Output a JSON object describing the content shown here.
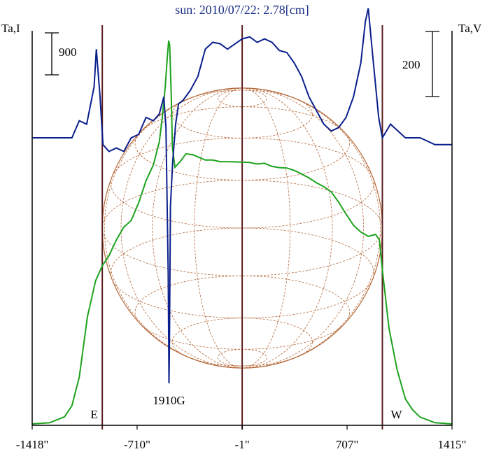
{
  "chart_data": {
    "type": "line",
    "title": "sun: 2010/07/22: 2.78[cm]",
    "left_axis_label": "Ta,I",
    "right_axis_label": "Ta,V",
    "left_scale_bar": {
      "label": "900",
      "value": 900
    },
    "right_scale_bar": {
      "label": "200",
      "value": 200
    },
    "x_unit": "arcsec",
    "xlim": [
      -1418,
      1415
    ],
    "x_ticks": [
      {
        "value": -1418,
        "label": "-1418\""
      },
      {
        "value": -710,
        "label": "-710\""
      },
      {
        "value": -1,
        "label": "-1\""
      },
      {
        "value": 707,
        "label": "707\""
      },
      {
        "value": 1415,
        "label": "1415\""
      }
    ],
    "vertical_markers": [
      -945,
      -1,
      945
    ],
    "solar_disk": {
      "center_x": 0,
      "radius": 945
    },
    "annotations": [
      {
        "text": "1910G",
        "x": -495
      },
      {
        "text": "E",
        "x": -1000
      },
      {
        "text": "W",
        "x": 1040
      }
    ],
    "series": [
      {
        "values": [
          [
            -1418,
            0
          ],
          [
            -1300,
            30
          ],
          [
            -1200,
            180
          ],
          [
            -1150,
            460
          ],
          [
            -1100,
            1180
          ],
          [
            -1045,
            2700
          ],
          [
            -990,
            3600
          ],
          [
            -945,
            3980
          ],
          [
            -900,
            4230
          ],
          [
            -850,
            4630
          ],
          [
            -800,
            4950
          ],
          [
            -750,
            5120
          ],
          [
            -700,
            5560
          ],
          [
            -650,
            6120
          ],
          [
            -600,
            6520
          ],
          [
            -560,
            7100
          ],
          [
            -540,
            7720
          ],
          [
            -520,
            8500
          ],
          [
            -505,
            9300
          ],
          [
            -497,
            9650
          ],
          [
            -490,
            9530
          ],
          [
            -480,
            8300
          ],
          [
            -472,
            6960
          ],
          [
            -455,
            6460
          ],
          [
            -420,
            6600
          ],
          [
            -380,
            6800
          ],
          [
            -330,
            6770
          ],
          [
            -300,
            6720
          ],
          [
            -250,
            6640
          ],
          [
            -200,
            6640
          ],
          [
            -150,
            6600
          ],
          [
            -100,
            6600
          ],
          [
            -1,
            6590
          ],
          [
            50,
            6580
          ],
          [
            100,
            6540
          ],
          [
            150,
            6560
          ],
          [
            200,
            6480
          ],
          [
            250,
            6450
          ],
          [
            300,
            6440
          ],
          [
            350,
            6380
          ],
          [
            400,
            6290
          ],
          [
            450,
            6190
          ],
          [
            500,
            6070
          ],
          [
            550,
            5970
          ],
          [
            600,
            5840
          ],
          [
            650,
            5580
          ],
          [
            700,
            5280
          ],
          [
            750,
            5000
          ],
          [
            800,
            4830
          ],
          [
            850,
            4720
          ],
          [
            900,
            4770
          ],
          [
            925,
            4630
          ],
          [
            945,
            3870
          ],
          [
            990,
            2400
          ],
          [
            1045,
            1360
          ],
          [
            1100,
            630
          ],
          [
            1150,
            350
          ],
          [
            1200,
            170
          ],
          [
            1300,
            30
          ],
          [
            1415,
            0
          ]
        ]
      },
      {
        "values": [
          [
            -1418,
            0
          ],
          [
            -1150,
            0
          ],
          [
            -1100,
            25
          ],
          [
            -1050,
            20
          ],
          [
            -1000,
            75
          ],
          [
            -985,
            130
          ],
          [
            -960,
            60
          ],
          [
            -940,
            -10
          ],
          [
            -900,
            -20
          ],
          [
            -850,
            -15
          ],
          [
            -800,
            -20
          ],
          [
            -750,
            0
          ],
          [
            -700,
            5
          ],
          [
            -650,
            30
          ],
          [
            -600,
            25
          ],
          [
            -560,
            35
          ],
          [
            -530,
            60
          ],
          [
            -515,
            15
          ],
          [
            -500,
            -200
          ],
          [
            -495,
            -360
          ],
          [
            -492,
            -310
          ],
          [
            -485,
            -100
          ],
          [
            -470,
            -35
          ],
          [
            -450,
            20
          ],
          [
            -430,
            50
          ],
          [
            -400,
            55
          ],
          [
            -350,
            70
          ],
          [
            -300,
            90
          ],
          [
            -250,
            130
          ],
          [
            -200,
            140
          ],
          [
            -150,
            138
          ],
          [
            -100,
            130
          ],
          [
            -1,
            145
          ],
          [
            50,
            148
          ],
          [
            100,
            140
          ],
          [
            150,
            145
          ],
          [
            200,
            140
          ],
          [
            250,
            128
          ],
          [
            300,
            125
          ],
          [
            350,
            110
          ],
          [
            400,
            90
          ],
          [
            450,
            60
          ],
          [
            500,
            40
          ],
          [
            550,
            20
          ],
          [
            600,
            10
          ],
          [
            650,
            15
          ],
          [
            700,
            30
          ],
          [
            750,
            60
          ],
          [
            800,
            110
          ],
          [
            830,
            170
          ],
          [
            850,
            190
          ],
          [
            880,
            120
          ],
          [
            920,
            30
          ],
          [
            945,
            0
          ],
          [
            1000,
            20
          ],
          [
            1100,
            0
          ],
          [
            1200,
            0
          ],
          [
            1300,
            -10
          ],
          [
            1415,
            -10
          ]
        ]
      }
    ],
    "colors": {
      "intensity": "#1ea31e",
      "polarization": "#0b1f8c",
      "disk": "#b5693a",
      "marker": "#5c1f1f",
      "title": "#1b2f86",
      "axis": "#000000"
    }
  }
}
